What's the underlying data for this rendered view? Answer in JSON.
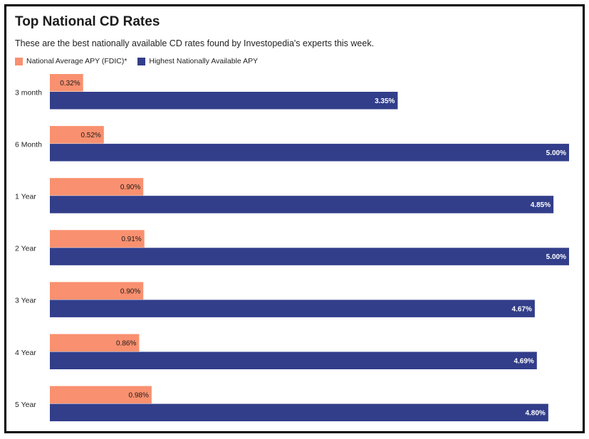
{
  "chart_data": {
    "type": "bar",
    "orientation": "horizontal",
    "title": "Top National CD Rates",
    "subtitle": "These are the best nationally available CD rates found by Investopedia's experts this week.",
    "categories": [
      "3 month",
      "6 Month",
      "1 Year",
      "2 Year",
      "3 Year",
      "4 Year",
      "5 Year"
    ],
    "series": [
      {
        "name": "National Average APY (FDIC)*",
        "color": "#f9906f",
        "values": [
          0.32,
          0.52,
          0.9,
          0.91,
          0.9,
          0.86,
          0.98
        ],
        "labels": [
          "0.32%",
          "0.52%",
          "0.90%",
          "0.91%",
          "0.90%",
          "0.86%",
          "0.98%"
        ]
      },
      {
        "name": "Highest Nationally Available APY",
        "color": "#323e8a",
        "values": [
          3.35,
          5.0,
          4.85,
          5.0,
          4.67,
          4.69,
          4.8
        ],
        "labels": [
          "3.35%",
          "5.00%",
          "4.85%",
          "5.00%",
          "4.67%",
          "4.69%",
          "4.80%"
        ]
      }
    ],
    "xlim": [
      0,
      5.0
    ],
    "grid": false,
    "legend_position": "top-left"
  }
}
